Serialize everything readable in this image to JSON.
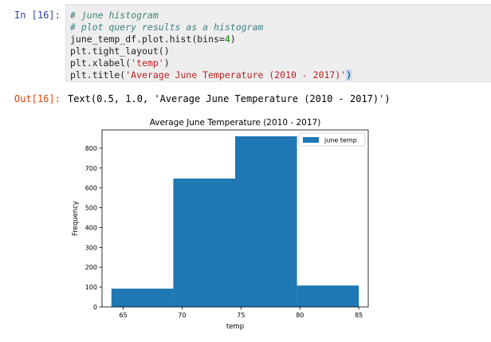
{
  "notebook": {
    "in_prompt": "In [16]:",
    "out_prompt": "Out[16]:",
    "code_lines": [
      [
        {
          "t": "# june histogram",
          "k": "comment"
        }
      ],
      [
        {
          "t": "# plot query results as a histogram",
          "k": "comment"
        }
      ],
      [
        {
          "t": "june_temp_df.plot.hist(bins=",
          "k": ""
        },
        {
          "t": "4",
          "k": "number"
        },
        {
          "t": ")",
          "k": ""
        }
      ],
      [
        {
          "t": "plt.tight_layout()",
          "k": ""
        }
      ],
      [
        {
          "t": "plt.xlabel(",
          "k": ""
        },
        {
          "t": "'temp'",
          "k": "string"
        },
        {
          "t": ")",
          "k": ""
        }
      ],
      [
        {
          "t": "plt.title(",
          "k": ""
        },
        {
          "t": "'Average June Temperature (2010 - 2017)'",
          "k": "string"
        },
        {
          "t": ")",
          "k": "paren"
        }
      ]
    ],
    "output_text": "Text(0.5, 1.0, 'Average June Temperature (2010 - 2017)')"
  },
  "chart_data": {
    "type": "bar",
    "title": "Average June Temperature (2010 - 2017)",
    "xlabel": "temp",
    "ylabel": "Frequency",
    "xlim": [
      63.2,
      85.8
    ],
    "ylim": [
      0,
      892
    ],
    "xticks": [
      65,
      70,
      75,
      80,
      85
    ],
    "yticks": [
      0,
      100,
      200,
      300,
      400,
      500,
      600,
      700,
      800
    ],
    "bins": [
      {
        "x0": 64,
        "x1": 69.25,
        "count": 92
      },
      {
        "x0": 69.25,
        "x1": 74.5,
        "count": 647
      },
      {
        "x0": 74.5,
        "x1": 79.75,
        "count": 860
      },
      {
        "x0": 79.75,
        "x1": 85,
        "count": 108
      }
    ],
    "series": [
      {
        "name": "june temp",
        "color": "#1f77b4"
      }
    ],
    "legend_position": "top-right",
    "grid": false
  }
}
